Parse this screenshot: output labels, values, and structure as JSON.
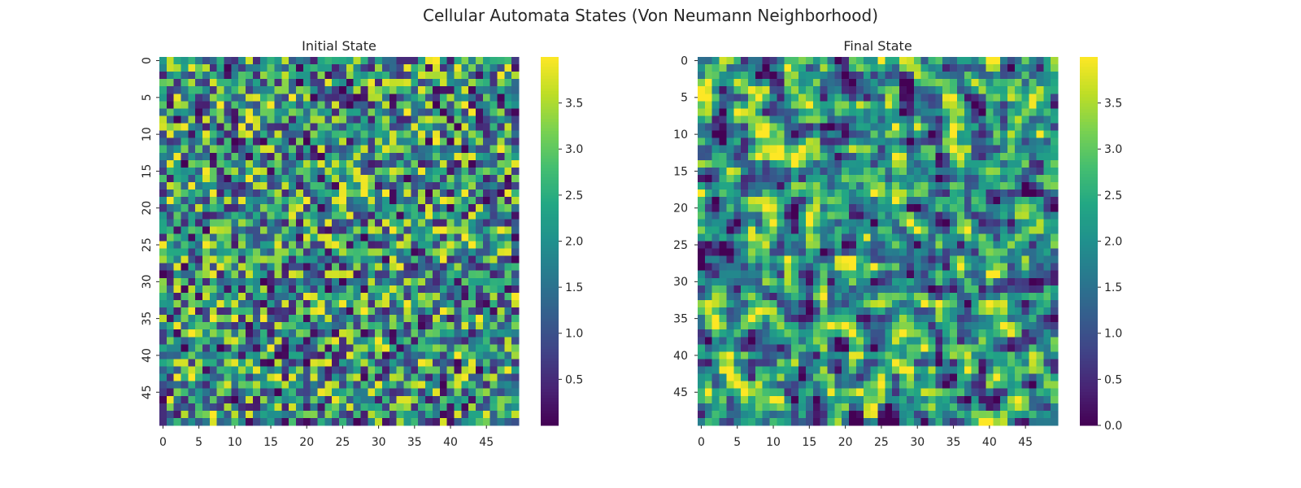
{
  "figure": {
    "title": "Cellular Automata States (Von Neumann Neighborhood)"
  },
  "chart_data": [
    {
      "type": "heatmap",
      "title": "Initial State",
      "colormap": "viridis",
      "grid": false,
      "rows": 50,
      "cols": 50,
      "value_range": [
        0,
        4
      ],
      "x_ticks": [
        "0",
        "5",
        "10",
        "15",
        "20",
        "25",
        "30",
        "35",
        "40",
        "45"
      ],
      "y_ticks": [
        "0",
        "5",
        "10",
        "15",
        "20",
        "25",
        "30",
        "35",
        "40",
        "45"
      ],
      "colorbar": {
        "range": [
          0.0,
          4.0
        ],
        "ticks": [
          "0.5",
          "1.0",
          "1.5",
          "2.0",
          "2.5",
          "3.0",
          "3.5"
        ]
      }
    },
    {
      "type": "heatmap",
      "title": "Final State",
      "colormap": "viridis",
      "grid": false,
      "rows": 50,
      "cols": 50,
      "value_range": [
        0,
        4
      ],
      "x_ticks": [
        "0",
        "5",
        "10",
        "15",
        "20",
        "25",
        "30",
        "35",
        "40",
        "45"
      ],
      "y_ticks": [
        "0",
        "5",
        "10",
        "15",
        "20",
        "25",
        "30",
        "35",
        "40",
        "45"
      ],
      "colorbar": {
        "range": [
          0.0,
          4.0
        ],
        "ticks": [
          "0.0",
          "0.5",
          "1.0",
          "1.5",
          "2.0",
          "2.5",
          "3.0",
          "3.5"
        ]
      }
    }
  ]
}
